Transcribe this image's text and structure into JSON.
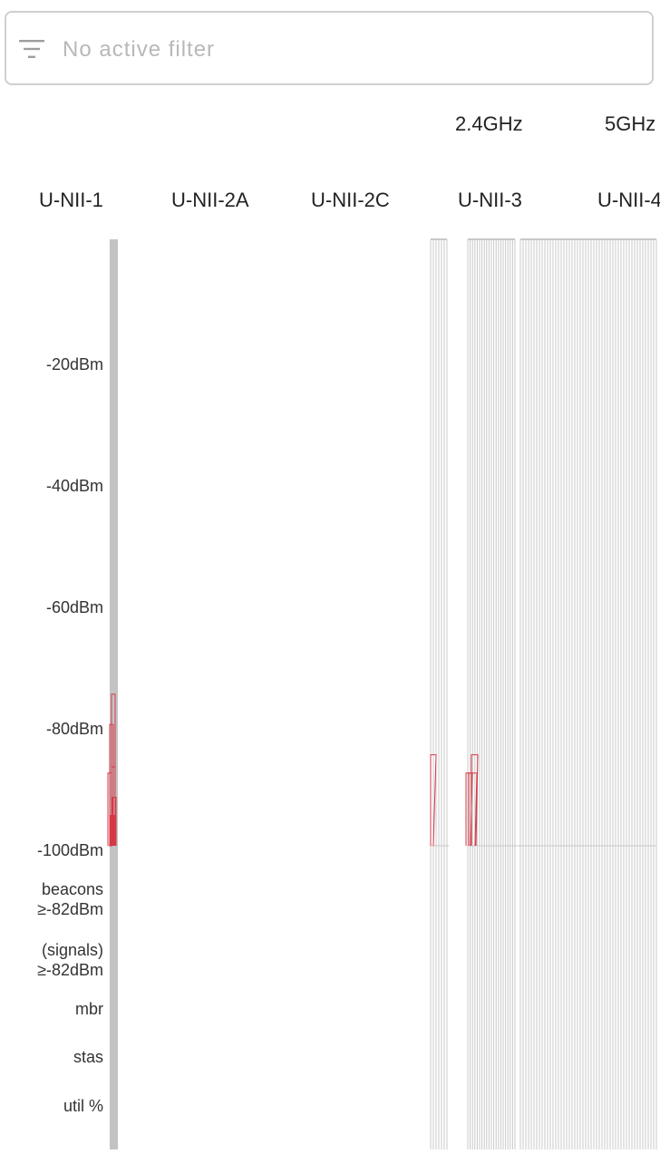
{
  "filter": {
    "placeholder": "No active filter",
    "value": ""
  },
  "band_groups": [
    {
      "label": "2.4GHz"
    },
    {
      "label": "5GHz"
    }
  ],
  "bands": [
    {
      "label": "U-NII-1"
    },
    {
      "label": "U-NII-2A"
    },
    {
      "label": "U-NII-2C"
    },
    {
      "label": "U-NII-3"
    },
    {
      "label": "U-NII-4"
    }
  ],
  "y_axis": {
    "labels": [
      "-20dBm",
      "-40dBm",
      "-60dBm",
      "-80dBm",
      "-100dBm"
    ]
  },
  "metrics": [
    {
      "label": "beacons\n≥-82dBm"
    },
    {
      "label": "(signals)\n≥-82dBm"
    },
    {
      "label": "mbr"
    },
    {
      "label": "stas"
    },
    {
      "label": "util %"
    }
  ],
  "colors": {
    "signal": "#d63845",
    "channel_line": "#c8c8c8",
    "active_channel_bar": "#c3c3c3"
  },
  "chart_data": {
    "type": "bar",
    "ylim": [
      -100,
      0
    ],
    "signals": [
      {
        "group": "U-NII-1",
        "dbm": [
          -75,
          -80,
          -87,
          -88,
          -92,
          -95,
          -100
        ]
      },
      {
        "group": "U-NII-3-left",
        "dbm": [
          -85
        ]
      },
      {
        "group": "U-NII-3-right",
        "dbm": [
          -85,
          -88,
          -88
        ]
      }
    ]
  }
}
